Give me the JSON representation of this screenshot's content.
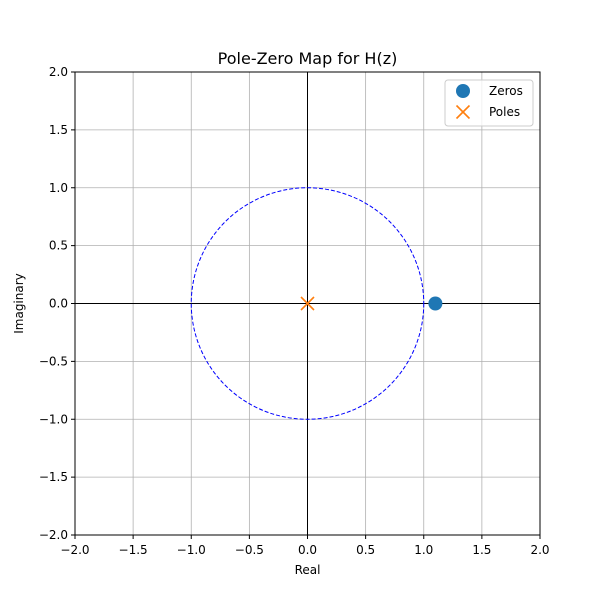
{
  "chart_data": {
    "type": "scatter",
    "title": "Pole-Zero Map for H(z)",
    "xlabel": "Real",
    "ylabel": "Imaginary",
    "xlim": [
      -2.0,
      2.0
    ],
    "ylim": [
      -2.0,
      2.0
    ],
    "xticks": [
      -2.0,
      -1.5,
      -1.0,
      -0.5,
      0.0,
      0.5,
      1.0,
      1.5,
      2.0
    ],
    "yticks": [
      -2.0,
      -1.5,
      -1.0,
      -0.5,
      0.0,
      0.5,
      1.0,
      1.5,
      2.0
    ],
    "xtick_labels": [
      "−2.0",
      "−1.5",
      "−1.0",
      "−0.5",
      "0.0",
      "0.5",
      "1.0",
      "1.5",
      "2.0"
    ],
    "ytick_labels": [
      "−2.0",
      "−1.5",
      "−1.0",
      "−0.5",
      "0.0",
      "0.5",
      "1.0",
      "1.5",
      "2.0"
    ],
    "grid": true,
    "legend_position": "top-right",
    "unit_circle": {
      "radius": 1.0,
      "color": "#0000ff",
      "style": "dashed"
    },
    "series": [
      {
        "name": "Zeros",
        "marker": "circle",
        "color": "#1f77b4",
        "points": [
          [
            1.1,
            0.0
          ]
        ]
      },
      {
        "name": "Poles",
        "marker": "x",
        "color": "#ff7f0e",
        "points": [
          [
            0.0,
            0.0
          ]
        ]
      }
    ]
  }
}
